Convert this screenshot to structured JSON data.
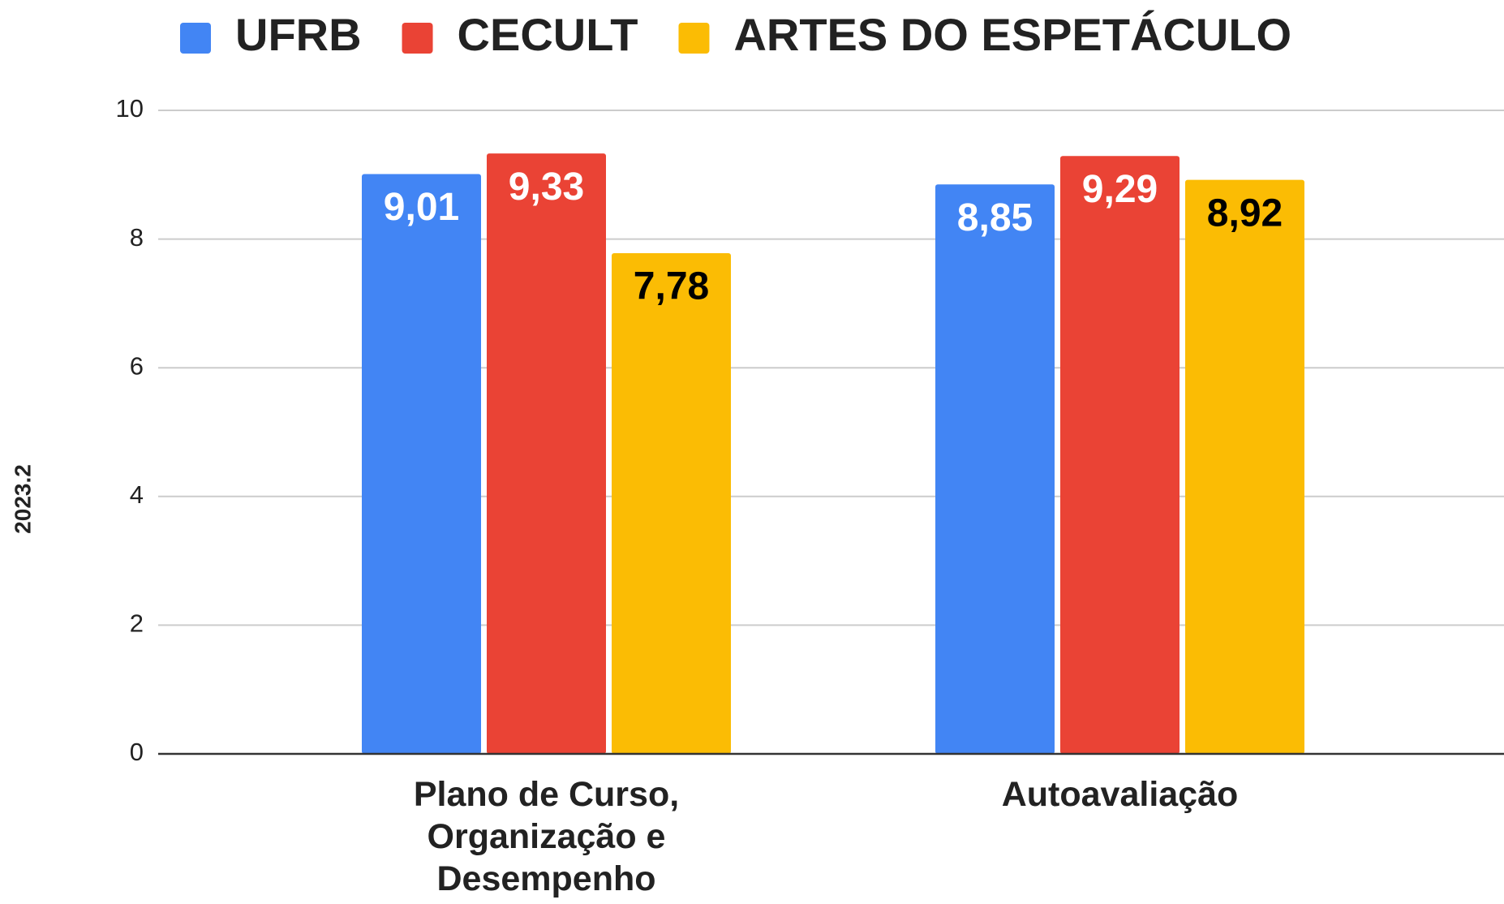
{
  "chart_data": {
    "type": "bar",
    "y_label": "2023.2",
    "categories": [
      "Plano de Curso, Organização e Desempenho",
      "Autoavaliação"
    ],
    "series": [
      {
        "name": "UFRB",
        "color": "#4285f4",
        "label_color": "#ffffff",
        "values": [
          9.01,
          8.85
        ],
        "value_labels": [
          "9,01",
          "8,85"
        ]
      },
      {
        "name": "CECULT",
        "color": "#ea4335",
        "label_color": "#ffffff",
        "values": [
          9.33,
          9.29
        ],
        "value_labels": [
          "9,33",
          "9,29"
        ]
      },
      {
        "name": "ARTES DO ESPETÁCULO",
        "color": "#fbbc04",
        "label_color": "#000000",
        "values": [
          7.78,
          8.92
        ],
        "value_labels": [
          "7,78",
          "8,92"
        ]
      }
    ],
    "ylim": [
      0,
      10
    ],
    "yticks": [
      0,
      2,
      4,
      6,
      8,
      10
    ],
    "grid": true,
    "legend": "top"
  }
}
